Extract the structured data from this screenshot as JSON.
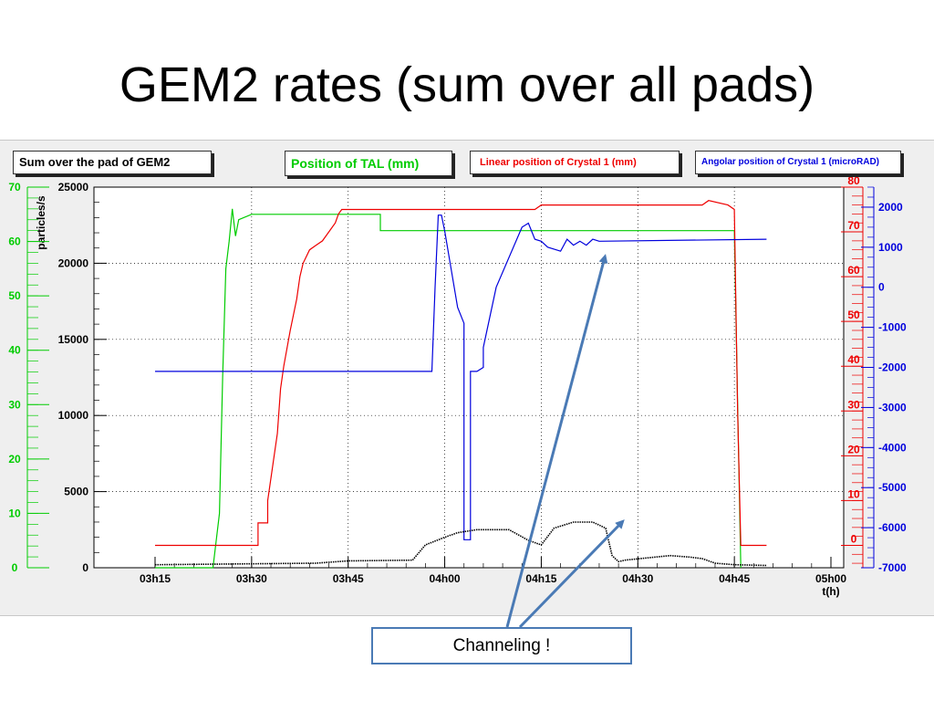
{
  "slide": {
    "title": "GEM2 rates (sum over all pads)",
    "callout": "Channeling !"
  },
  "colors": {
    "rates": "#000000",
    "tal": "#00cc00",
    "crystal_linear": "#ee0000",
    "crystal_angular": "#0000dd",
    "arrow": "#4a7ab5"
  },
  "chart_data": {
    "type": "line",
    "title": "Sum over the pad of GEM2",
    "xlabel": "t(h)",
    "x_ticks": [
      "03h15",
      "03h30",
      "03h45",
      "04h00",
      "04h15",
      "04h30",
      "04h45",
      "05h00"
    ],
    "xlim": [
      "03h15",
      "05h00"
    ],
    "grid": true,
    "axes": {
      "left_rates": {
        "label": "particles/s",
        "range": [
          0,
          25000
        ],
        "ticks": [
          "0",
          "5000",
          "10000",
          "15000",
          "20000",
          "25000"
        ],
        "color": "#000000"
      },
      "left_tal": {
        "range": [
          0,
          70
        ],
        "ticks": [
          "0",
          "10",
          "20",
          "30",
          "40",
          "50",
          "60",
          "70"
        ],
        "color": "#00cc00"
      },
      "right_linear": {
        "range": [
          -5,
          80
        ],
        "ticks": [
          "0",
          "10",
          "20",
          "30",
          "40",
          "50",
          "60",
          "70",
          "80"
        ],
        "color": "#ee0000"
      },
      "right_angular": {
        "range": [
          -7000,
          2500
        ],
        "ticks": [
          "-7000",
          "-6000",
          "-5000",
          "-4000",
          "-3000",
          "-2000",
          "-1000",
          "0",
          "1000",
          "2000"
        ],
        "color": "#0000dd"
      }
    },
    "series": [
      {
        "name": "Position of TAL (mm)",
        "axis": "left_tal",
        "color": "#00cc00",
        "x": [
          "03h15",
          "03h24",
          "03h25",
          "03h25.5",
          "03h26",
          "03h26.5",
          "03h27",
          "03h27.5",
          "03h28",
          "03h30",
          "03h50",
          "03h50",
          "04h45",
          "04h45.5",
          "04h46"
        ],
        "y": [
          0,
          0,
          10,
          35,
          55,
          60,
          66,
          61,
          64,
          65,
          65,
          62,
          62,
          30,
          0
        ]
      },
      {
        "name": "Linear position of Crystal 1 (mm)",
        "axis": "right_linear",
        "color": "#ee0000",
        "x": [
          "03h15",
          "03h31",
          "03h31",
          "03h32.5",
          "03h32.5",
          "03h34",
          "03h34.5",
          "03h35",
          "03h36",
          "03h37",
          "03h37.5",
          "03h38",
          "03h39",
          "03h40",
          "03h41",
          "03h42",
          "03h43",
          "03h43.5",
          "03h44",
          "03h45",
          "04h14",
          "04h15",
          "04h40",
          "04h41",
          "04h44",
          "04h45",
          "04h45.5",
          "04h46",
          "04h50"
        ],
        "y": [
          0,
          0,
          5,
          5,
          10,
          25,
          35,
          40,
          48,
          55,
          60,
          63,
          66,
          67,
          68,
          70,
          72,
          74,
          75,
          75,
          75,
          76,
          76,
          77,
          76,
          75,
          30,
          0,
          0
        ]
      },
      {
        "name": "Angolar position of Crystal 1 (microRAD)",
        "axis": "right_angular",
        "color": "#0000dd",
        "x": [
          "03h15",
          "03h58",
          "03h58.5",
          "03h59",
          "03h59.5",
          "04h00",
          "04h02",
          "04h03",
          "04h03",
          "04h04",
          "04h04",
          "04h05",
          "04h06",
          "04h06",
          "04h08",
          "04h12",
          "04h13",
          "04h14",
          "04h15",
          "04h16",
          "04h18",
          "04h19",
          "04h20",
          "04h21",
          "04h22",
          "04h23",
          "04h24",
          "04h50"
        ],
        "y": [
          -2100,
          -2100,
          0,
          1800,
          1800,
          1400,
          -500,
          -900,
          -6300,
          -6300,
          -2100,
          -2100,
          -2000,
          -1500,
          0,
          1500,
          1600,
          1200,
          1150,
          1000,
          900,
          1200,
          1050,
          1150,
          1050,
          1200,
          1150,
          1200
        ]
      },
      {
        "name": "Sum over the pad of GEM2",
        "axis": "left_rates",
        "color": "#000000",
        "x": [
          "03h15",
          "03h40",
          "03h45",
          "03h55",
          "03h57",
          "04h00",
          "04h02",
          "04h05",
          "04h08",
          "04h10",
          "04h13",
          "04h15",
          "04h17",
          "04h20",
          "04h23",
          "04h25",
          "04h26",
          "04h27",
          "04h28",
          "04h35",
          "04h38",
          "04h40",
          "04h42",
          "04h45",
          "04h50"
        ],
        "y": [
          200,
          300,
          450,
          500,
          1500,
          2000,
          2300,
          2500,
          2500,
          2500,
          1800,
          1500,
          2600,
          3000,
          3000,
          2600,
          800,
          400,
          500,
          800,
          700,
          600,
          300,
          200,
          150
        ]
      }
    ],
    "annotations": [
      "Channeling !"
    ]
  }
}
